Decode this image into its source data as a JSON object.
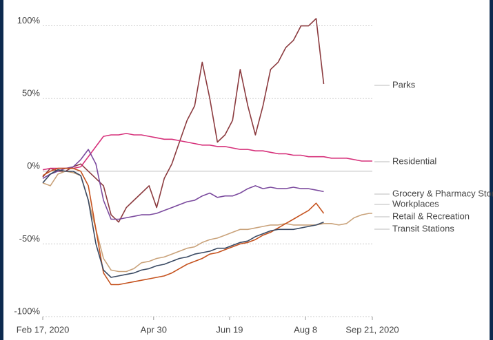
{
  "chart_data": {
    "type": "line",
    "x": [
      "2020-02-17",
      "2020-02-22",
      "2020-02-27",
      "2020-03-03",
      "2020-03-08",
      "2020-03-13",
      "2020-03-18",
      "2020-03-23",
      "2020-03-28",
      "2020-04-02",
      "2020-04-07",
      "2020-04-12",
      "2020-04-17",
      "2020-04-22",
      "2020-04-27",
      "2020-05-02",
      "2020-05-07",
      "2020-05-12",
      "2020-05-17",
      "2020-05-22",
      "2020-05-27",
      "2020-06-01",
      "2020-06-06",
      "2020-06-11",
      "2020-06-16",
      "2020-06-21",
      "2020-06-26",
      "2020-07-01",
      "2020-07-06",
      "2020-07-11",
      "2020-07-16",
      "2020-07-21",
      "2020-07-26",
      "2020-07-31",
      "2020-08-05",
      "2020-08-10",
      "2020-08-15",
      "2020-08-20",
      "2020-08-25",
      "2020-08-30",
      "2020-09-04",
      "2020-09-09",
      "2020-09-14",
      "2020-09-19",
      "2020-09-21"
    ],
    "xlim": [
      "2020-02-17",
      "2020-09-21"
    ],
    "xticks": [
      {
        "value": "2020-02-17",
        "label": "Feb 17, 2020"
      },
      {
        "value": "2020-04-30",
        "label": "Apr 30"
      },
      {
        "value": "2020-06-19",
        "label": "Jun 19"
      },
      {
        "value": "2020-08-08",
        "label": "Aug 8"
      },
      {
        "value": "2020-09-21",
        "label": "Sep 21, 2020"
      }
    ],
    "ylim": [
      -100,
      105
    ],
    "yticks": [
      {
        "value": -100,
        "label": "-100%"
      },
      {
        "value": -50,
        "label": "-50%"
      },
      {
        "value": 0,
        "label": "0%"
      },
      {
        "value": 50,
        "label": "50%"
      },
      {
        "value": 100,
        "label": "100%"
      }
    ],
    "grid": true,
    "series": [
      {
        "name": "Parks",
        "color": "#8b3a3e",
        "values": [
          -4,
          2,
          0,
          0,
          3,
          5,
          0,
          -5,
          -10,
          -30,
          -35,
          -25,
          -20,
          -15,
          -10,
          -25,
          -5,
          5,
          20,
          35,
          45,
          75,
          50,
          20,
          25,
          35,
          70,
          45,
          25,
          45,
          70,
          75,
          85,
          90,
          100,
          100,
          105,
          60,
          null,
          null,
          null,
          null,
          null,
          null,
          null
        ]
      },
      {
        "name": "Residential",
        "color": "#d6307a",
        "values": [
          1,
          2,
          2,
          2,
          2,
          3,
          10,
          17,
          24,
          25,
          25,
          26,
          25,
          25,
          24,
          23,
          22,
          22,
          21,
          20,
          19,
          18,
          18,
          17,
          17,
          16,
          15,
          15,
          14,
          14,
          13,
          12,
          12,
          11,
          11,
          10,
          10,
          10,
          9,
          9,
          9,
          8,
          7,
          7,
          7
        ]
      },
      {
        "name": "Grocery & Pharmacy Stores",
        "color": "#7b4a9e",
        "values": [
          -5,
          -2,
          0,
          2,
          3,
          8,
          15,
          5,
          -20,
          -33,
          -33,
          -32,
          -31,
          -30,
          -30,
          -29,
          -27,
          -25,
          -23,
          -21,
          -20,
          -17,
          -15,
          -18,
          -17,
          -17,
          -15,
          -12,
          -10,
          -12,
          -11,
          -12,
          -12,
          -11,
          -12,
          -12,
          -13,
          -14,
          null,
          null,
          null,
          null,
          null,
          null,
          null
        ]
      },
      {
        "name": "Workplaces",
        "color": "#c9a27a",
        "values": [
          -8,
          -10,
          -2,
          0,
          -1,
          -3,
          -20,
          -40,
          -60,
          -68,
          -69,
          -69,
          -67,
          -63,
          -62,
          -60,
          -59,
          -57,
          -55,
          -53,
          -52,
          -49,
          -47,
          -46,
          -44,
          -42,
          -40,
          -40,
          -39,
          -38,
          -37,
          -37,
          -36,
          -37,
          -37,
          -37,
          -37,
          -36,
          -36,
          -37,
          -36,
          -32,
          -30,
          -29,
          -29
        ]
      },
      {
        "name": "Retail & Recreation",
        "color": "#c5521e",
        "values": [
          -3,
          0,
          2,
          2,
          2,
          0,
          -10,
          -40,
          -70,
          -78,
          -78,
          -77,
          -76,
          -75,
          -74,
          -73,
          -72,
          -70,
          -67,
          -64,
          -62,
          -60,
          -57,
          -56,
          -54,
          -52,
          -50,
          -49,
          -47,
          -44,
          -42,
          -39,
          -36,
          -33,
          -30,
          -27,
          -22,
          -29,
          null,
          null,
          null,
          null,
          null,
          null,
          null
        ]
      },
      {
        "name": "Transit Stations",
        "color": "#3a4a63",
        "values": [
          -8,
          -2,
          1,
          0,
          0,
          -3,
          -20,
          -50,
          -68,
          -73,
          -72,
          -71,
          -70,
          -68,
          -67,
          -65,
          -64,
          -62,
          -60,
          -59,
          -57,
          -56,
          -55,
          -53,
          -53,
          -51,
          -49,
          -48,
          -45,
          -43,
          -41,
          -40,
          -40,
          -40,
          -39,
          -38,
          -37,
          -35,
          null,
          null,
          null,
          null,
          null,
          null,
          null
        ]
      }
    ]
  }
}
